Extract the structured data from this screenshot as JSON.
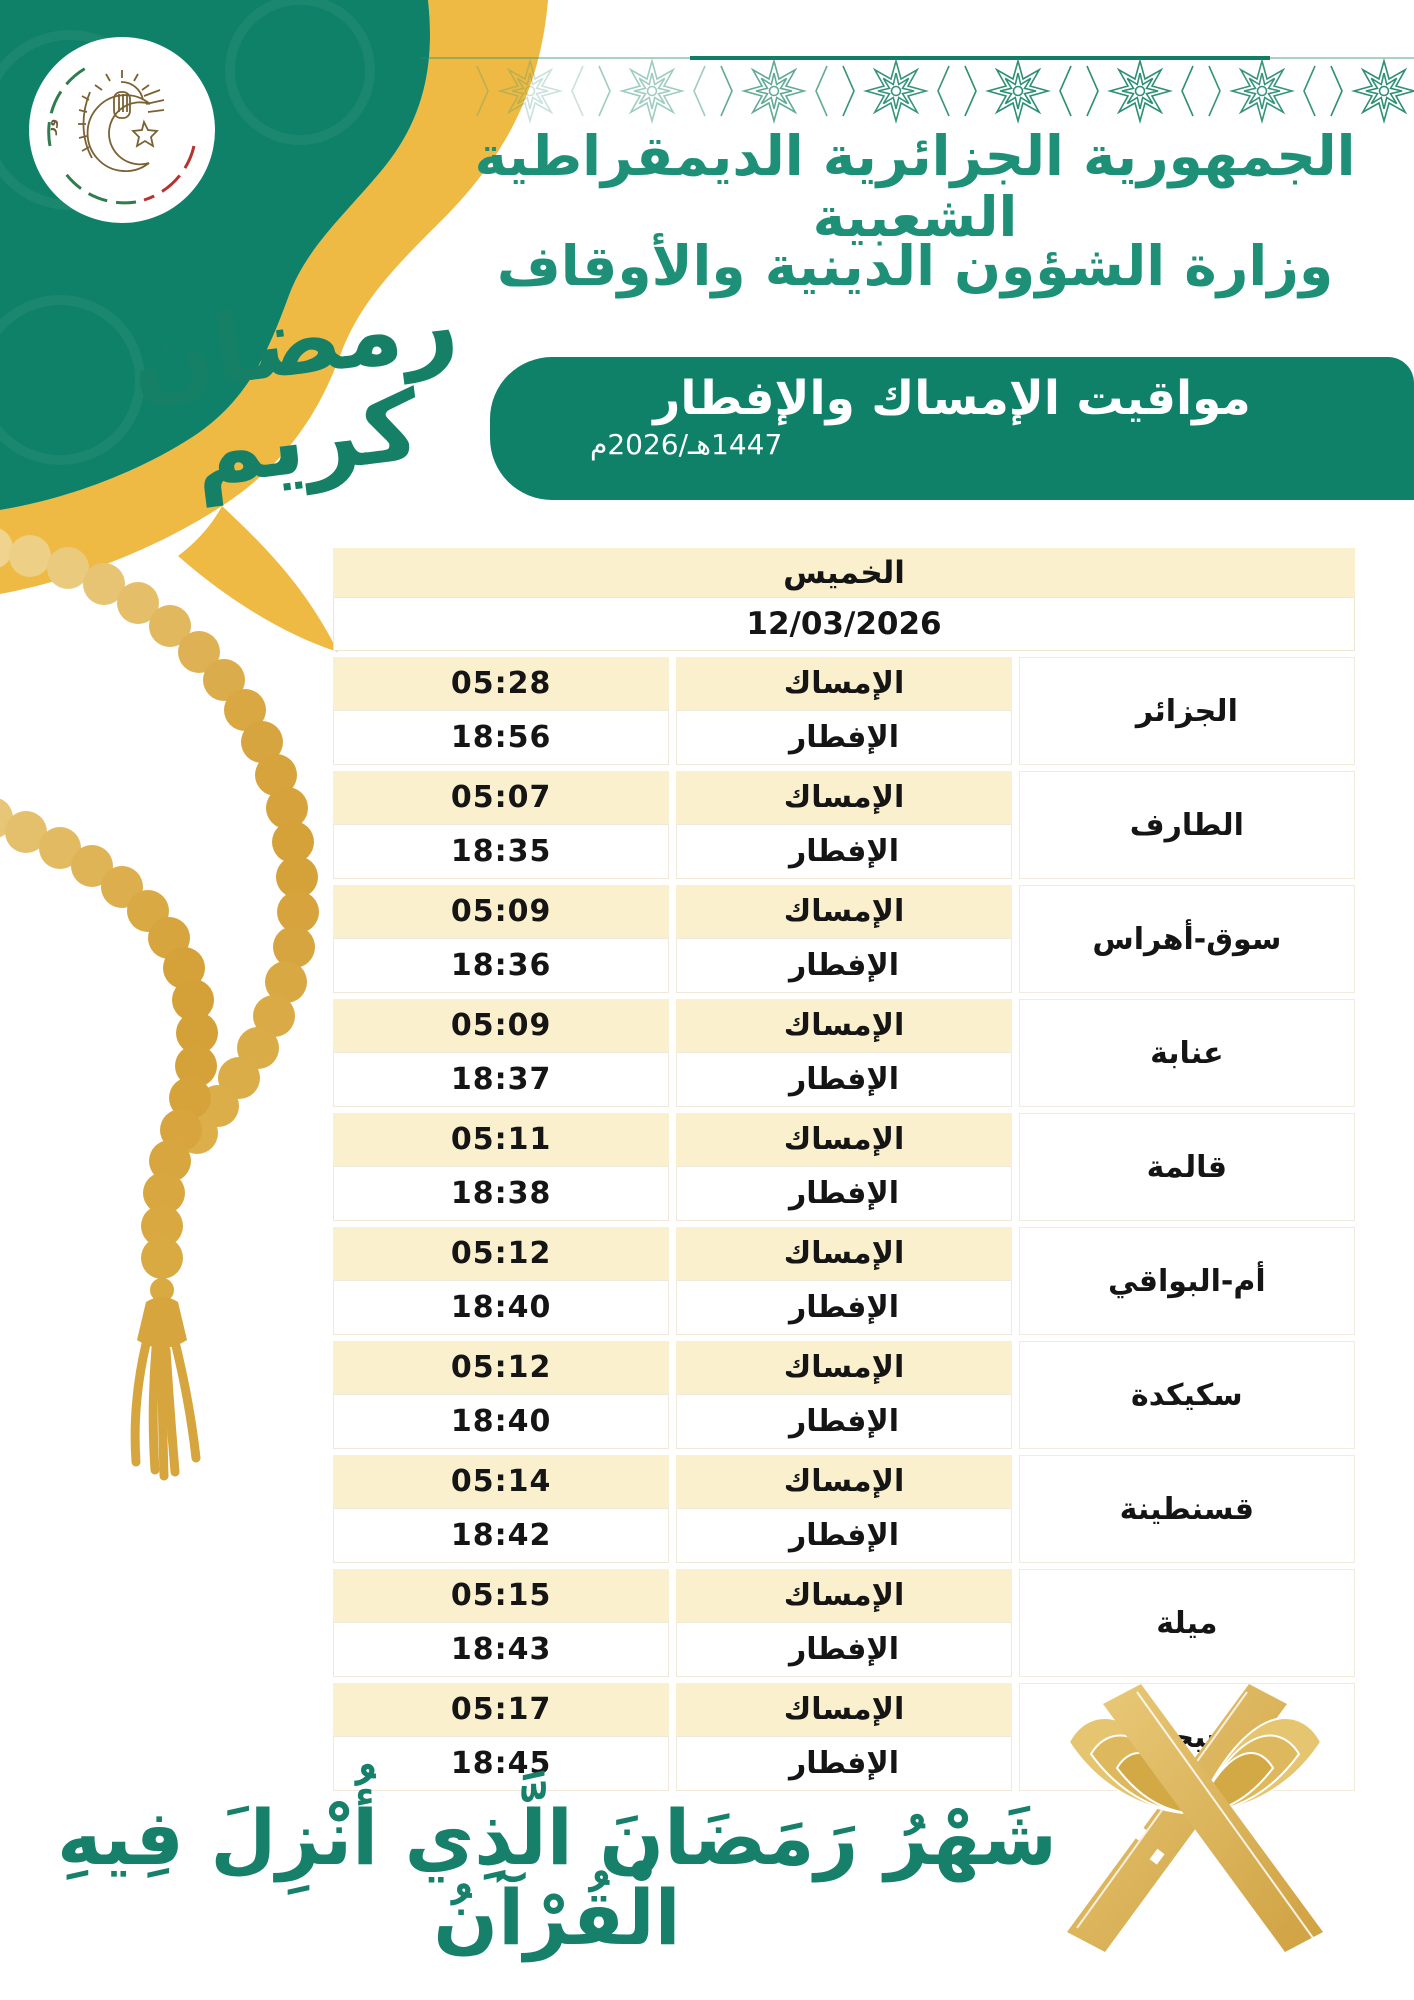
{
  "header": {
    "republic_line": "الجمهورية الجزائرية الديمقراطية الشعبية",
    "ministry_line": "وزارة الشؤون الدينية والأوقاف",
    "logo_arc_text": "وزارة الشؤون الدينية والأوقاف",
    "banner_title": "مواقيت الإمساك والإفطار",
    "banner_year": "1447هـ/2026م",
    "ramadan_kareem": "رمضان كريم"
  },
  "table": {
    "day": "الخميس",
    "date": "12/03/2026",
    "imsak_label": "الإمساك",
    "iftar_label": "الإفطار",
    "cities": [
      {
        "name": "الجزائر",
        "imsak": "05:28",
        "iftar": "18:56"
      },
      {
        "name": "الطارف",
        "imsak": "05:07",
        "iftar": "18:35"
      },
      {
        "name": "سوق-أهراس",
        "imsak": "05:09",
        "iftar": "18:36"
      },
      {
        "name": "عنابة",
        "imsak": "05:09",
        "iftar": "18:37"
      },
      {
        "name": "قالمة",
        "imsak": "05:11",
        "iftar": "18:38"
      },
      {
        "name": "أم-البواقي",
        "imsak": "05:12",
        "iftar": "18:40"
      },
      {
        "name": "سكيكدة",
        "imsak": "05:12",
        "iftar": "18:40"
      },
      {
        "name": "قسنطينة",
        "imsak": "05:14",
        "iftar": "18:42"
      },
      {
        "name": "ميلة",
        "imsak": "05:15",
        "iftar": "18:43"
      },
      {
        "name": "جيجل",
        "imsak": "05:17",
        "iftar": "18:45"
      }
    ]
  },
  "footer": {
    "verse": "شَهْرُ رَمَضَانَ الَّذِي أُنْزِلَ فِيهِ الْقُرْآنُ"
  },
  "colors": {
    "green": "#0F8168",
    "green_text": "#1E9077",
    "gold": "#EFBA43",
    "cream": "#FBF0CE",
    "bead_gold": "#D9AA41"
  }
}
